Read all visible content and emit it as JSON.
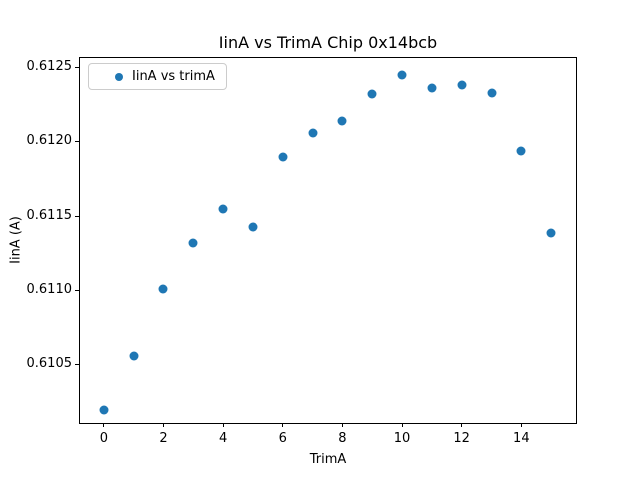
{
  "chart_data": {
    "type": "scatter",
    "title": "IinA vs TrimA Chip 0x14bcb",
    "xlabel": "TrimA",
    "ylabel": "IinA (A)",
    "legend_label": "IinA vs trimA",
    "legend_position": "upper left",
    "marker_color": "#1f77b4",
    "grid": false,
    "x": [
      0,
      1,
      2,
      3,
      4,
      5,
      6,
      7,
      8,
      9,
      10,
      11,
      12,
      13,
      14,
      15
    ],
    "y": [
      0.6102,
      0.61056,
      0.61101,
      0.61132,
      0.61155,
      0.61143,
      0.6119,
      0.61206,
      0.61214,
      0.61232,
      0.61245,
      0.61236,
      0.61238,
      0.61233,
      0.61194,
      0.61139
    ],
    "xlim": [
      -0.8,
      15.9
    ],
    "ylim": [
      0.610096,
      0.612565
    ],
    "xticks": [
      0,
      2,
      4,
      6,
      8,
      10,
      12,
      14
    ],
    "xticklabels": [
      "0",
      "2",
      "4",
      "6",
      "8",
      "10",
      "12",
      "14"
    ],
    "yticks": [
      0.6105,
      0.611,
      0.6115,
      0.612,
      0.6125
    ],
    "yticklabels": [
      "0.6105",
      "0.6110",
      "0.6115",
      "0.6120",
      "0.6125"
    ]
  }
}
